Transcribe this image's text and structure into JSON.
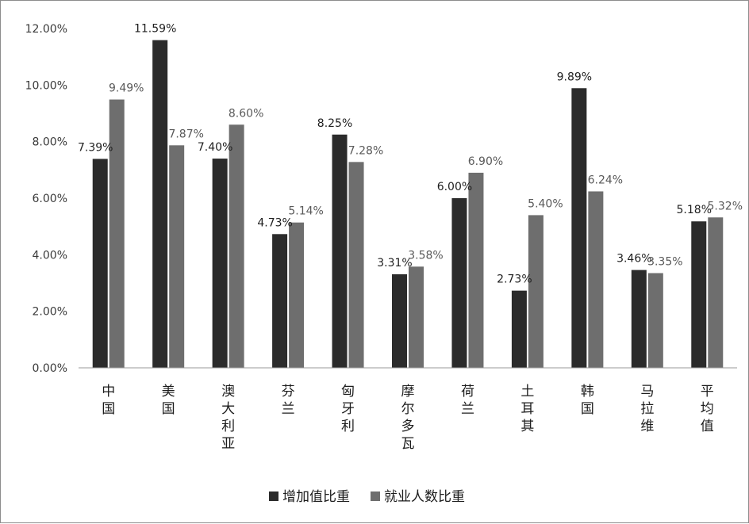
{
  "chart_data": {
    "type": "bar",
    "categories": [
      "中国",
      "美国",
      "澳大利亚",
      "芬兰",
      "匈牙利",
      "摩尔多瓦",
      "荷兰",
      "土耳其",
      "韩国",
      "马拉维",
      "平均值"
    ],
    "series": [
      {
        "name": "增加值比重",
        "color": "#2b2b2b",
        "values": [
          7.39,
          11.59,
          7.4,
          4.73,
          8.25,
          3.31,
          6.0,
          2.73,
          9.89,
          3.46,
          5.18
        ],
        "labels": [
          "7.39%",
          "11.59%",
          "7.40%",
          "4.73%",
          "8.25%",
          "3.31%",
          "6.00%",
          "2.73%",
          "9.89%",
          "3.46%",
          "5.18%"
        ]
      },
      {
        "name": "就业人数比重",
        "color": "#6e6e6e",
        "values": [
          9.49,
          7.87,
          8.6,
          5.14,
          7.28,
          3.58,
          6.9,
          5.4,
          6.24,
          3.35,
          5.32
        ],
        "labels": [
          "9.49%",
          "7.87%",
          "8.60%",
          "5.14%",
          "7.28%",
          "3.58%",
          "6.90%",
          "5.40%",
          "6.24%",
          "3.35%",
          "5.32%"
        ]
      }
    ],
    "y_ticks": [
      {
        "value": 0,
        "label": "0.00%"
      },
      {
        "value": 2,
        "label": "2.00%"
      },
      {
        "value": 4,
        "label": "4.00%"
      },
      {
        "value": 6,
        "label": "6.00%"
      },
      {
        "value": 8,
        "label": "8.00%"
      },
      {
        "value": 10,
        "label": "10.00%"
      },
      {
        "value": 12,
        "label": "12.00%"
      }
    ],
    "ylim": [
      0,
      12
    ],
    "grid": false,
    "legend_position": "bottom-center"
  }
}
